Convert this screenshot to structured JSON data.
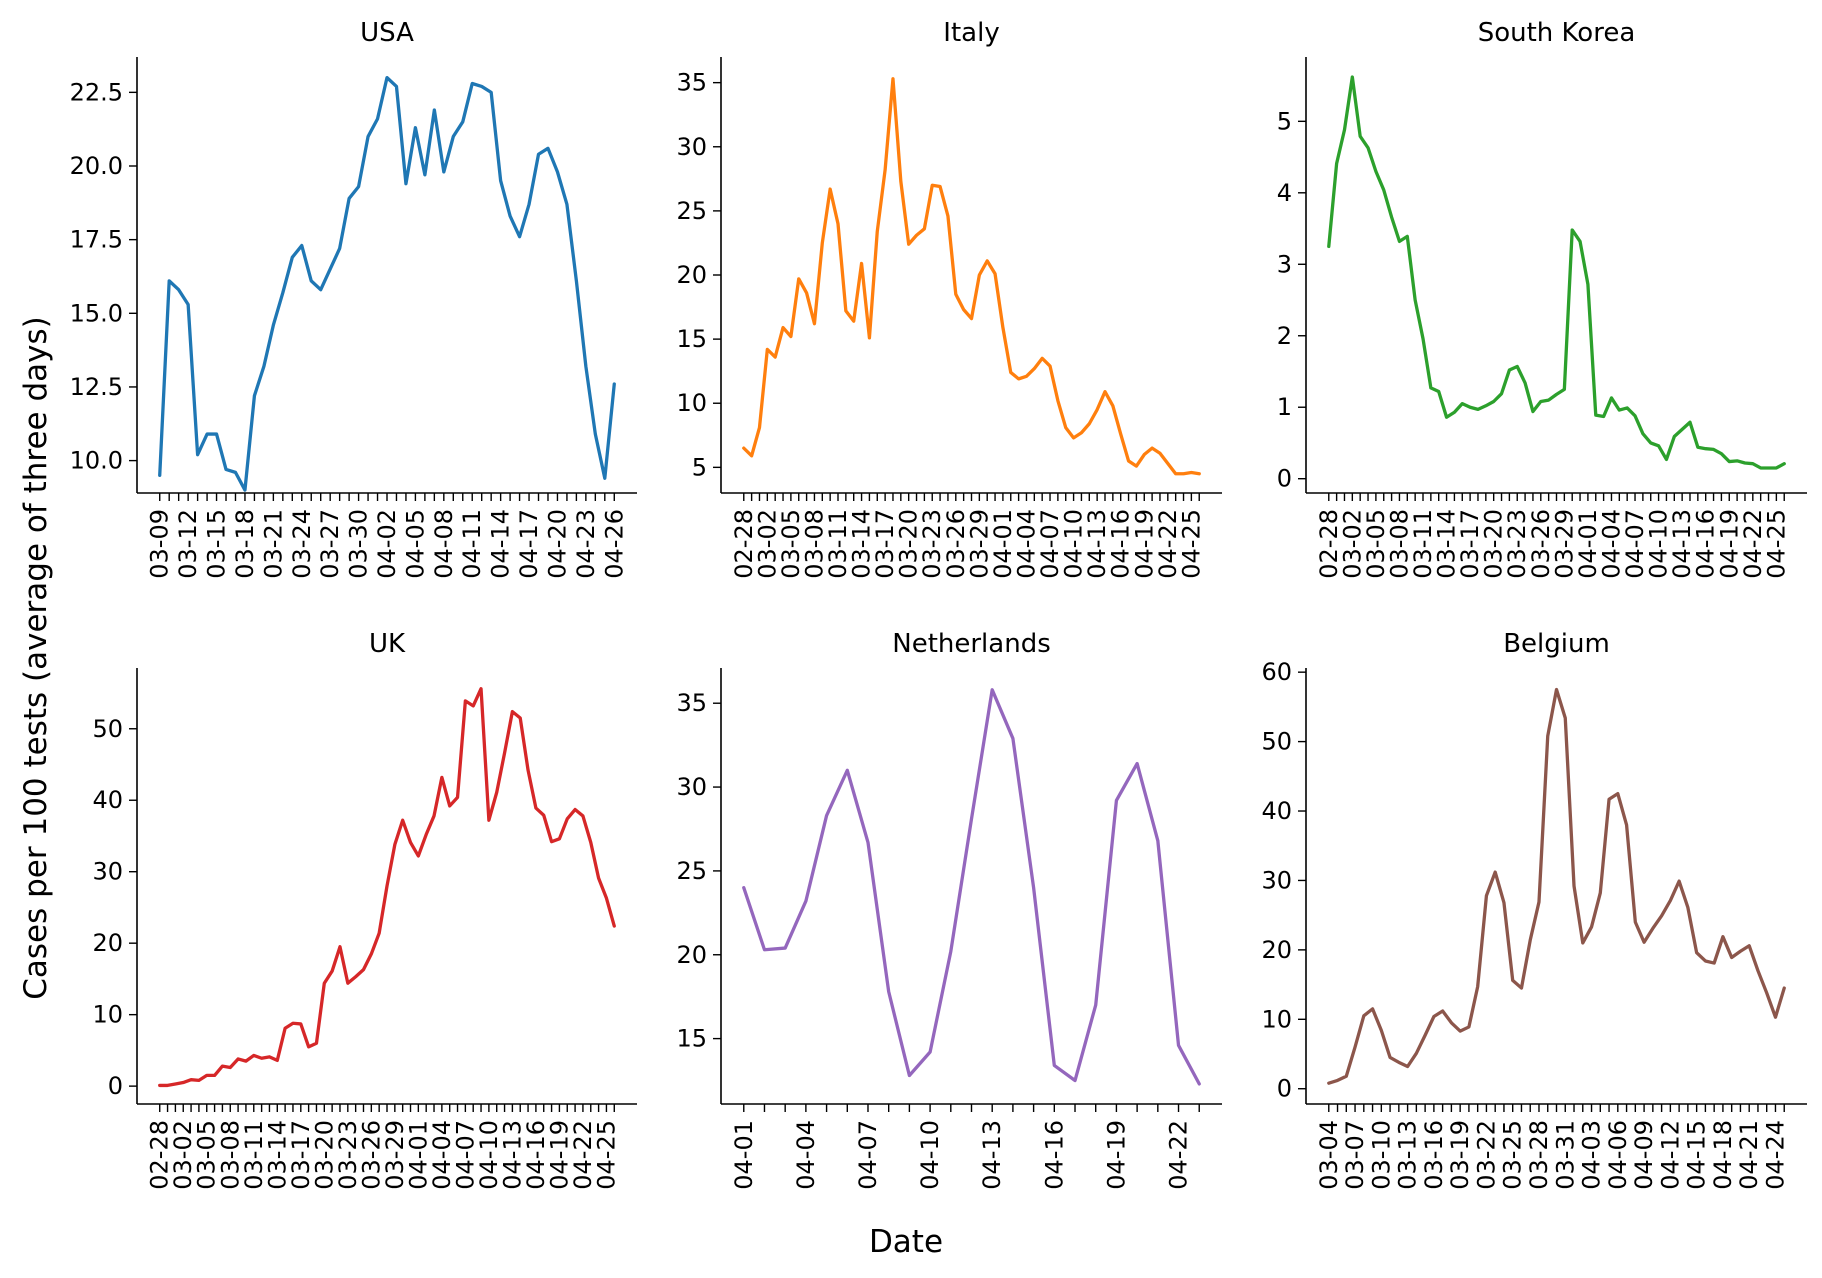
{
  "figure": {
    "ylabel": "Cases per 100 tests (average of three days)",
    "xlabel": "Date"
  },
  "chart_data": [
    {
      "type": "line",
      "title": "USA",
      "color": "#1f77b4",
      "ylim": [
        8.9,
        23.7
      ],
      "yticks": [
        "10.0",
        "12.5",
        "15.0",
        "17.5",
        "20.0",
        "22.5"
      ],
      "x_start": "03-09",
      "x_labels": [
        "03-09",
        "03-12",
        "03-15",
        "03-18",
        "03-21",
        "03-24",
        "03-27",
        "03-30",
        "04-02",
        "04-05",
        "04-08",
        "04-11",
        "04-14",
        "04-17",
        "04-20",
        "04-23",
        "04-26"
      ],
      "label_step": 3,
      "y": [
        9.5,
        16.1,
        15.8,
        15.3,
        10.2,
        10.9,
        10.9,
        9.7,
        9.6,
        9.0,
        12.2,
        13.2,
        14.6,
        15.7,
        16.9,
        17.3,
        16.1,
        15.8,
        16.5,
        17.2,
        18.9,
        19.3,
        21.0,
        21.6,
        23.0,
        22.7,
        19.4,
        21.3,
        19.7,
        21.9,
        19.8,
        21.0,
        21.5,
        22.8,
        22.7,
        22.5,
        19.5,
        18.3,
        17.6,
        18.7,
        20.4,
        20.6,
        19.8,
        18.7,
        16.1,
        13.2,
        10.9,
        9.4,
        12.6
      ]
    },
    {
      "type": "line",
      "title": "Italy",
      "color": "#ff7f0e",
      "ylim": [
        3.0,
        37.0
      ],
      "yticks": [
        "5",
        "10",
        "15",
        "20",
        "25",
        "30",
        "35"
      ],
      "x_start": "02-28",
      "x_labels": [
        "02-28",
        "03-02",
        "03-05",
        "03-08",
        "03-11",
        "03-14",
        "03-17",
        "03-20",
        "03-23",
        "03-26",
        "03-29",
        "04-01",
        "04-04",
        "04-07",
        "04-10",
        "04-13",
        "04-16",
        "04-19",
        "04-22",
        "04-25"
      ],
      "label_step": 3,
      "y": [
        6.5,
        5.9,
        8.1,
        14.2,
        13.6,
        15.9,
        15.2,
        19.7,
        18.6,
        16.2,
        22.5,
        26.7,
        24.0,
        17.2,
        16.4,
        20.9,
        15.1,
        23.4,
        28.2,
        35.3,
        27.3,
        22.4,
        23.1,
        23.6,
        27.0,
        26.9,
        24.6,
        18.5,
        17.3,
        16.6,
        20.0,
        21.1,
        20.1,
        15.9,
        12.4,
        11.9,
        12.1,
        12.7,
        13.5,
        12.9,
        10.2,
        8.1,
        7.3,
        7.7,
        8.4,
        9.5,
        10.9,
        9.8,
        7.6,
        5.5,
        5.1,
        6.0,
        6.5,
        6.1,
        5.3,
        4.5,
        4.5,
        4.6,
        4.5
      ]
    },
    {
      "type": "line",
      "title": "South Korea",
      "color": "#2ca02c",
      "ylim": [
        -0.2,
        5.9
      ],
      "yticks": [
        "0",
        "1",
        "2",
        "3",
        "4",
        "5"
      ],
      "x_start": "02-28",
      "x_labels": [
        "02-28",
        "03-02",
        "03-05",
        "03-08",
        "03-11",
        "03-14",
        "03-17",
        "03-20",
        "03-23",
        "03-26",
        "03-29",
        "04-01",
        "04-04",
        "04-07",
        "04-10",
        "04-13",
        "04-16",
        "04-19",
        "04-22",
        "04-25"
      ],
      "label_step": 3,
      "y": [
        3.25,
        4.41,
        4.88,
        5.62,
        4.79,
        4.63,
        4.3,
        4.04,
        3.66,
        3.32,
        3.39,
        2.5,
        1.96,
        1.27,
        1.22,
        0.86,
        0.93,
        1.05,
        1.0,
        0.97,
        1.02,
        1.08,
        1.19,
        1.52,
        1.57,
        1.34,
        0.94,
        1.08,
        1.1,
        1.18,
        1.25,
        3.48,
        3.32,
        2.72,
        0.89,
        0.87,
        1.13,
        0.96,
        0.99,
        0.88,
        0.63,
        0.5,
        0.46,
        0.27,
        0.59,
        0.69,
        0.79,
        0.44,
        0.42,
        0.41,
        0.35,
        0.24,
        0.25,
        0.22,
        0.21,
        0.15,
        0.15,
        0.15,
        0.21
      ]
    },
    {
      "type": "line",
      "title": "UK",
      "color": "#d62728",
      "ylim": [
        -2.5,
        58.5
      ],
      "yticks": [
        "0",
        "10",
        "20",
        "30",
        "40",
        "50"
      ],
      "x_start": "02-28",
      "x_labels": [
        "02-28",
        "03-02",
        "03-05",
        "03-08",
        "03-11",
        "03-14",
        "03-17",
        "03-20",
        "03-23",
        "03-26",
        "03-29",
        "04-01",
        "04-04",
        "04-07",
        "04-10",
        "04-13",
        "04-16",
        "04-19",
        "04-22",
        "04-25"
      ],
      "label_step": 3,
      "y": [
        0.1,
        0.1,
        0.3,
        0.5,
        0.9,
        0.8,
        1.5,
        1.5,
        2.8,
        2.6,
        3.8,
        3.5,
        4.3,
        3.9,
        4.1,
        3.6,
        8.1,
        8.8,
        8.7,
        5.5,
        6.0,
        14.4,
        16.1,
        19.5,
        14.4,
        15.3,
        16.3,
        18.5,
        21.4,
        28.0,
        33.8,
        37.2,
        34.1,
        32.2,
        35.2,
        37.8,
        43.2,
        39.2,
        40.4,
        53.9,
        53.2,
        55.6,
        37.2,
        41.1,
        46.6,
        52.4,
        51.5,
        44.2,
        38.9,
        37.9,
        34.2,
        34.6,
        37.4,
        38.7,
        37.8,
        34.1,
        29.1,
        26.3,
        22.4
      ]
    },
    {
      "type": "line",
      "title": "Netherlands",
      "color": "#9467bd",
      "ylim": [
        11.1,
        37.1
      ],
      "yticks": [
        "15",
        "20",
        "25",
        "30",
        "35"
      ],
      "x_start": "04-01",
      "x_labels": [
        "04-01",
        "04-04",
        "04-07",
        "04-10",
        "04-13",
        "04-16",
        "04-19",
        "04-22"
      ],
      "label_step": 3,
      "y": [
        24.0,
        20.3,
        20.4,
        23.2,
        28.3,
        31.0,
        26.7,
        17.8,
        12.8,
        14.2,
        20.2,
        28.1,
        35.8,
        32.9,
        24.0,
        13.4,
        12.5,
        17.0,
        29.2,
        31.4,
        26.8,
        14.6,
        12.3
      ]
    },
    {
      "type": "line",
      "title": "Belgium",
      "color": "#8c564b",
      "ylim": [
        -2.2,
        60.6
      ],
      "yticks": [
        "0",
        "10",
        "20",
        "30",
        "40",
        "50",
        "60"
      ],
      "x_start": "03-04",
      "x_labels": [
        "03-04",
        "03-07",
        "03-10",
        "03-13",
        "03-16",
        "03-19",
        "03-22",
        "03-25",
        "03-28",
        "03-31",
        "04-03",
        "04-06",
        "04-09",
        "04-12",
        "04-15",
        "04-18",
        "04-21",
        "04-24"
      ],
      "label_step": 3,
      "y": [
        0.8,
        1.2,
        1.8,
        6.0,
        10.5,
        11.5,
        8.4,
        4.5,
        3.8,
        3.2,
        5.1,
        7.7,
        10.4,
        11.2,
        9.5,
        8.3,
        8.9,
        14.7,
        27.8,
        31.2,
        26.8,
        15.6,
        14.5,
        21.4,
        26.9,
        50.8,
        57.5,
        53.4,
        29.2,
        21.0,
        23.3,
        28.2,
        41.7,
        42.5,
        38.0,
        24.0,
        21.1,
        23.1,
        24.9,
        27.1,
        29.9,
        26.1,
        19.6,
        18.4,
        18.1,
        21.9,
        18.9,
        19.8,
        20.6,
        17.0,
        13.8,
        10.3,
        14.5
      ]
    }
  ]
}
